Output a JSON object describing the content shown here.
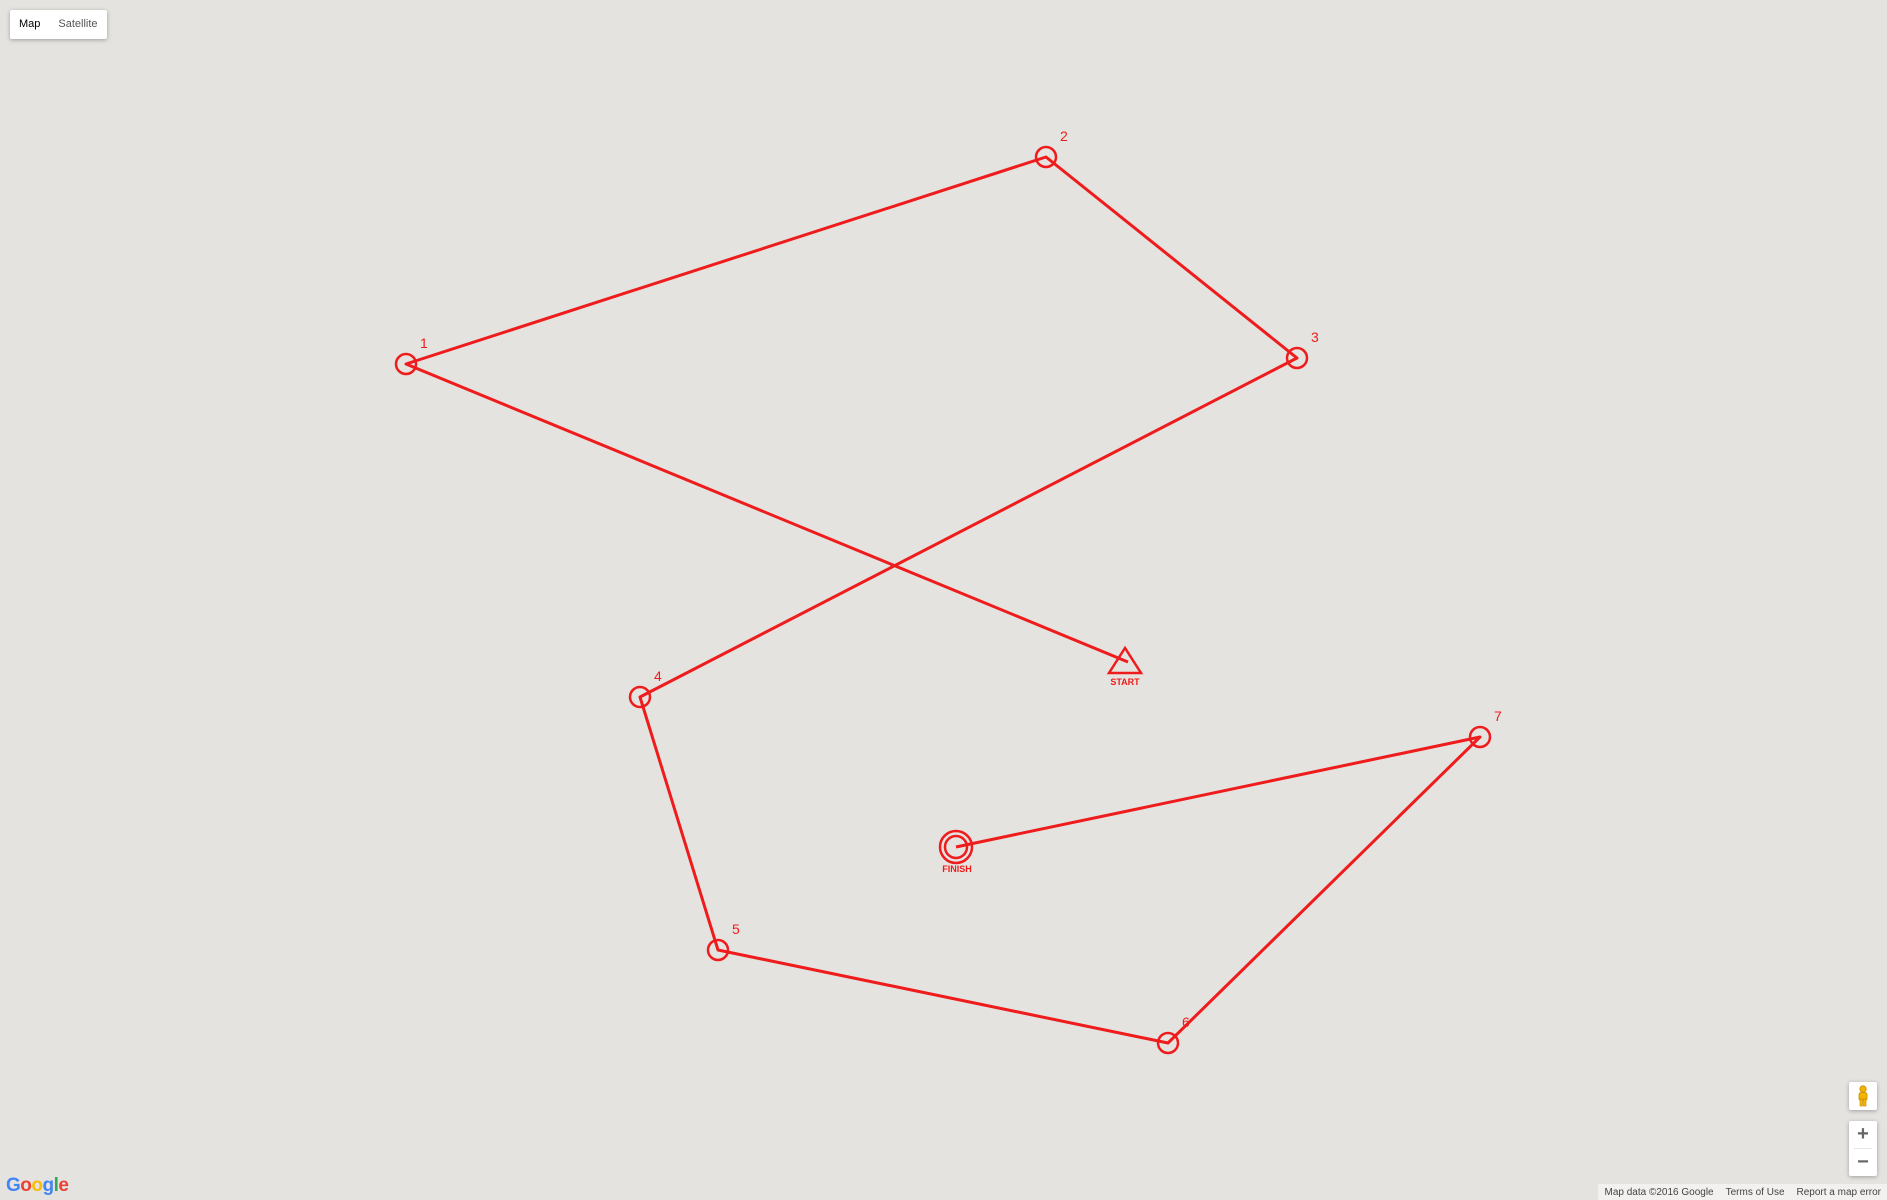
{
  "map_type": {
    "options": [
      "Map",
      "Satellite"
    ],
    "selected": "Map"
  },
  "colors": {
    "route": "#ee1c1c",
    "background": "#e5e3df"
  },
  "course": {
    "start_label": "START",
    "finish_label": "FINISH",
    "controls": [
      "1",
      "2",
      "3",
      "4",
      "5",
      "6",
      "7"
    ]
  },
  "zoom": {
    "in_label": "+",
    "out_label": "−"
  },
  "icons": {
    "pegman": "pegman-icon"
  },
  "footer": {
    "map_data": "Map data ©2016 Google",
    "terms": "Terms of Use",
    "report": "Report a map error"
  },
  "logo": {
    "letters": [
      "G",
      "o",
      "o",
      "g",
      "l",
      "e"
    ]
  }
}
